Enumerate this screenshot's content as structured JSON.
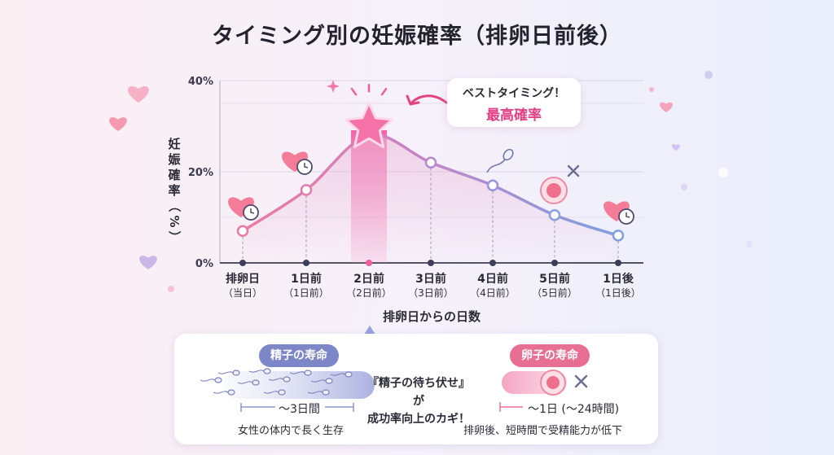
{
  "title": "タイミング別の妊娠確率（排卵日前後）",
  "chart_data": {
    "type": "line",
    "title": "タイミング別の妊娠確率（排卵日前後）",
    "ylabel": "妊娠確率（%）",
    "xlabel": "排卵日からの日数",
    "ylim": [
      0,
      40
    ],
    "yticks": [
      "0%",
      "20%",
      "40%"
    ],
    "grid": true,
    "categories": [
      "排卵日",
      "1日前",
      "2日前",
      "3日前",
      "4日前",
      "5日前",
      "1日後"
    ],
    "subcategories": [
      "（当日）",
      "（1日前）",
      "（2日前）",
      "（3日前）",
      "（4日前）",
      "（5日前）",
      "（1日後）"
    ],
    "values": [
      7,
      16,
      28,
      22,
      17,
      10.5,
      6
    ],
    "highlight_index": 2,
    "annotation": {
      "line1": "ベストタイミング！",
      "line2": "最高確率"
    }
  },
  "colors": {
    "line_start": "#ef7aa0",
    "line_end": "#7d9fe0",
    "highlight": "#f25c9e",
    "star": "#f472a8",
    "axis_dot": "#3d3d5c"
  },
  "icons": {
    "point_0": "heart-clock-icon",
    "point_1": "heart-clock-icon",
    "point_2": "star-icon",
    "point_4": "sperm-icon",
    "point_5": "egg-icon",
    "point_6": "heart-clock-icon"
  },
  "panel": {
    "sperm_label": "精子の寿命",
    "sperm_duration": "～3日間",
    "sperm_note": "女性の体内で長く生存",
    "key_line1": "『精子の待ち伏せ』が",
    "key_line2": "成功率向上のカギ！",
    "egg_label": "卵子の寿命",
    "egg_duration": "～1日 (～24時間)",
    "egg_note": "排卵後、短時間で受精能力が低下"
  }
}
